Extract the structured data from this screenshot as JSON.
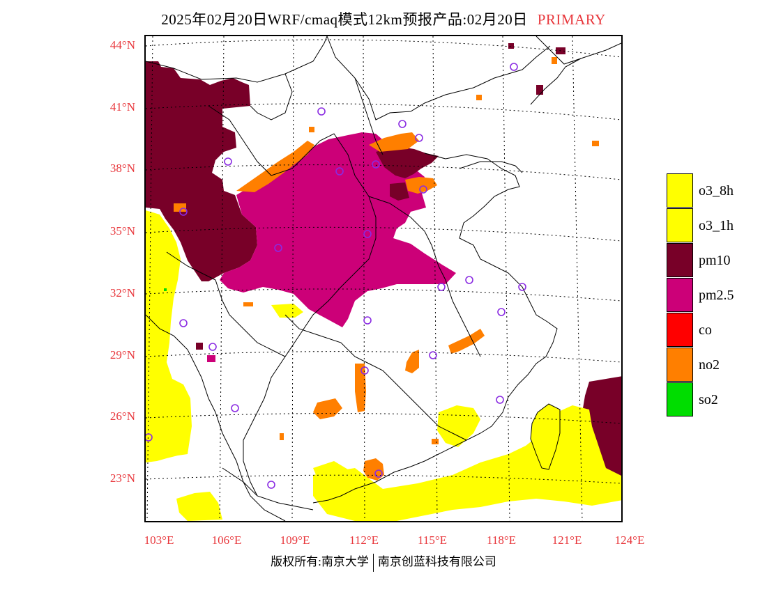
{
  "title": {
    "main": "2025年02月20日WRF/cmaq模式12km预报产品:02月20日",
    "tag": "PRIMARY"
  },
  "axes": {
    "latitude_ticks": [
      "44°N",
      "41°N",
      "38°N",
      "35°N",
      "32°N",
      "29°N",
      "26°N",
      "23°N"
    ],
    "longitude_ticks": [
      "103°E",
      "106°E",
      "109°E",
      "112°E",
      "115°E",
      "118°E",
      "121°E",
      "124°E"
    ]
  },
  "legend": {
    "items": [
      {
        "label": "o3_8h",
        "color": "#ffff00"
      },
      {
        "label": "o3_1h",
        "color": "#ffff00"
      },
      {
        "label": "pm10",
        "color": "#780028"
      },
      {
        "label": "pm2.5",
        "color": "#cc0078"
      },
      {
        "label": "co",
        "color": "#ff0000"
      },
      {
        "label": "no2",
        "color": "#ff7f00"
      },
      {
        "label": "so2",
        "color": "#00dd00"
      }
    ]
  },
  "map": {
    "colors": {
      "o3": "#ffff00",
      "pm10": "#780028",
      "pm25": "#cc0078",
      "no2": "#ff7f00",
      "so2": "#00dd00",
      "station_marker": "#8a2be2",
      "grid": "#000000",
      "boundary": "#000000"
    }
  },
  "footer": {
    "left": "版权所有:南京大学",
    "right": "南京创蓝科技有限公司"
  }
}
